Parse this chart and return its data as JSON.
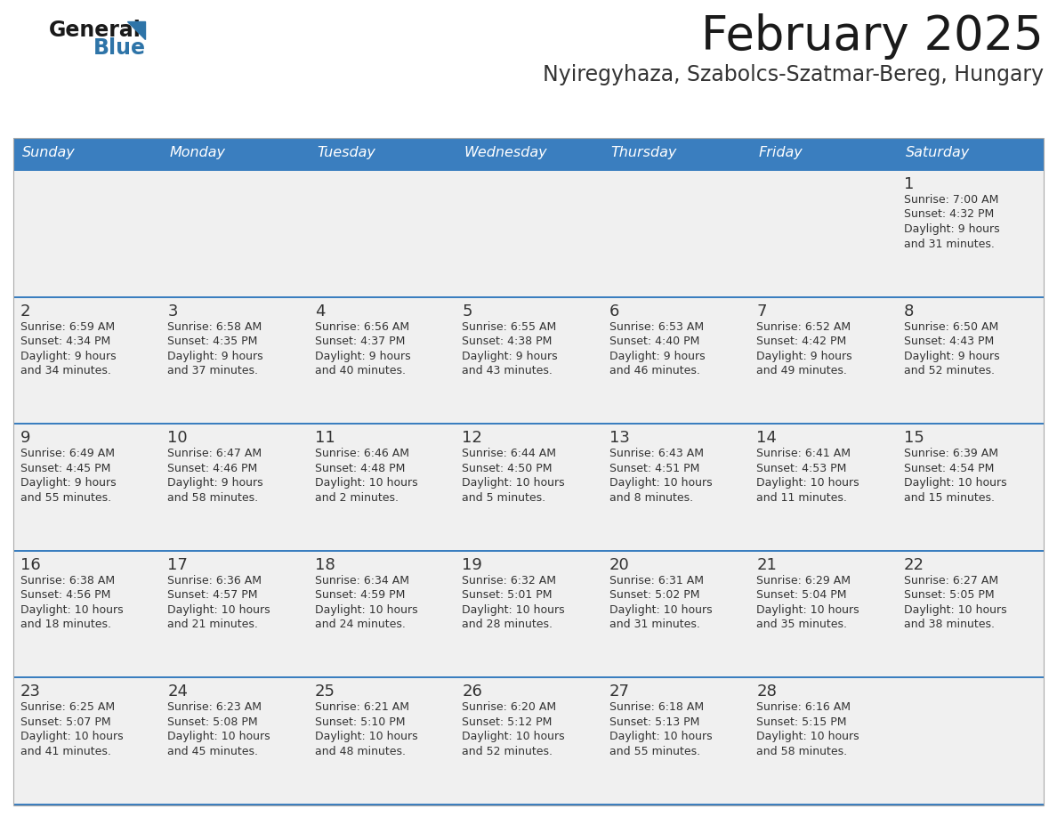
{
  "title": "February 2025",
  "subtitle": "Nyiregyhaza, Szabolcs-Szatmar-Bereg, Hungary",
  "days_of_week": [
    "Sunday",
    "Monday",
    "Tuesday",
    "Wednesday",
    "Thursday",
    "Friday",
    "Saturday"
  ],
  "header_bg": "#3A7EBF",
  "header_text_color": "#FFFFFF",
  "cell_bg_light": "#F0F0F0",
  "cell_bg_white": "#FFFFFF",
  "divider_color": "#3A7EBF",
  "text_color": "#333333",
  "day_number_color": "#333333",
  "title_color": "#1a1a1a",
  "subtitle_color": "#333333",
  "logo_general_color": "#1a1a1a",
  "logo_blue_color": "#2E74A8",
  "calendar_data": [
    [
      {
        "day": null,
        "info": null
      },
      {
        "day": null,
        "info": null
      },
      {
        "day": null,
        "info": null
      },
      {
        "day": null,
        "info": null
      },
      {
        "day": null,
        "info": null
      },
      {
        "day": null,
        "info": null
      },
      {
        "day": 1,
        "info": "Sunrise: 7:00 AM\nSunset: 4:32 PM\nDaylight: 9 hours\nand 31 minutes."
      }
    ],
    [
      {
        "day": 2,
        "info": "Sunrise: 6:59 AM\nSunset: 4:34 PM\nDaylight: 9 hours\nand 34 minutes."
      },
      {
        "day": 3,
        "info": "Sunrise: 6:58 AM\nSunset: 4:35 PM\nDaylight: 9 hours\nand 37 minutes."
      },
      {
        "day": 4,
        "info": "Sunrise: 6:56 AM\nSunset: 4:37 PM\nDaylight: 9 hours\nand 40 minutes."
      },
      {
        "day": 5,
        "info": "Sunrise: 6:55 AM\nSunset: 4:38 PM\nDaylight: 9 hours\nand 43 minutes."
      },
      {
        "day": 6,
        "info": "Sunrise: 6:53 AM\nSunset: 4:40 PM\nDaylight: 9 hours\nand 46 minutes."
      },
      {
        "day": 7,
        "info": "Sunrise: 6:52 AM\nSunset: 4:42 PM\nDaylight: 9 hours\nand 49 minutes."
      },
      {
        "day": 8,
        "info": "Sunrise: 6:50 AM\nSunset: 4:43 PM\nDaylight: 9 hours\nand 52 minutes."
      }
    ],
    [
      {
        "day": 9,
        "info": "Sunrise: 6:49 AM\nSunset: 4:45 PM\nDaylight: 9 hours\nand 55 minutes."
      },
      {
        "day": 10,
        "info": "Sunrise: 6:47 AM\nSunset: 4:46 PM\nDaylight: 9 hours\nand 58 minutes."
      },
      {
        "day": 11,
        "info": "Sunrise: 6:46 AM\nSunset: 4:48 PM\nDaylight: 10 hours\nand 2 minutes."
      },
      {
        "day": 12,
        "info": "Sunrise: 6:44 AM\nSunset: 4:50 PM\nDaylight: 10 hours\nand 5 minutes."
      },
      {
        "day": 13,
        "info": "Sunrise: 6:43 AM\nSunset: 4:51 PM\nDaylight: 10 hours\nand 8 minutes."
      },
      {
        "day": 14,
        "info": "Sunrise: 6:41 AM\nSunset: 4:53 PM\nDaylight: 10 hours\nand 11 minutes."
      },
      {
        "day": 15,
        "info": "Sunrise: 6:39 AM\nSunset: 4:54 PM\nDaylight: 10 hours\nand 15 minutes."
      }
    ],
    [
      {
        "day": 16,
        "info": "Sunrise: 6:38 AM\nSunset: 4:56 PM\nDaylight: 10 hours\nand 18 minutes."
      },
      {
        "day": 17,
        "info": "Sunrise: 6:36 AM\nSunset: 4:57 PM\nDaylight: 10 hours\nand 21 minutes."
      },
      {
        "day": 18,
        "info": "Sunrise: 6:34 AM\nSunset: 4:59 PM\nDaylight: 10 hours\nand 24 minutes."
      },
      {
        "day": 19,
        "info": "Sunrise: 6:32 AM\nSunset: 5:01 PM\nDaylight: 10 hours\nand 28 minutes."
      },
      {
        "day": 20,
        "info": "Sunrise: 6:31 AM\nSunset: 5:02 PM\nDaylight: 10 hours\nand 31 minutes."
      },
      {
        "day": 21,
        "info": "Sunrise: 6:29 AM\nSunset: 5:04 PM\nDaylight: 10 hours\nand 35 minutes."
      },
      {
        "day": 22,
        "info": "Sunrise: 6:27 AM\nSunset: 5:05 PM\nDaylight: 10 hours\nand 38 minutes."
      }
    ],
    [
      {
        "day": 23,
        "info": "Sunrise: 6:25 AM\nSunset: 5:07 PM\nDaylight: 10 hours\nand 41 minutes."
      },
      {
        "day": 24,
        "info": "Sunrise: 6:23 AM\nSunset: 5:08 PM\nDaylight: 10 hours\nand 45 minutes."
      },
      {
        "day": 25,
        "info": "Sunrise: 6:21 AM\nSunset: 5:10 PM\nDaylight: 10 hours\nand 48 minutes."
      },
      {
        "day": 26,
        "info": "Sunrise: 6:20 AM\nSunset: 5:12 PM\nDaylight: 10 hours\nand 52 minutes."
      },
      {
        "day": 27,
        "info": "Sunrise: 6:18 AM\nSunset: 5:13 PM\nDaylight: 10 hours\nand 55 minutes."
      },
      {
        "day": 28,
        "info": "Sunrise: 6:16 AM\nSunset: 5:15 PM\nDaylight: 10 hours\nand 58 minutes."
      },
      {
        "day": null,
        "info": null
      }
    ]
  ]
}
